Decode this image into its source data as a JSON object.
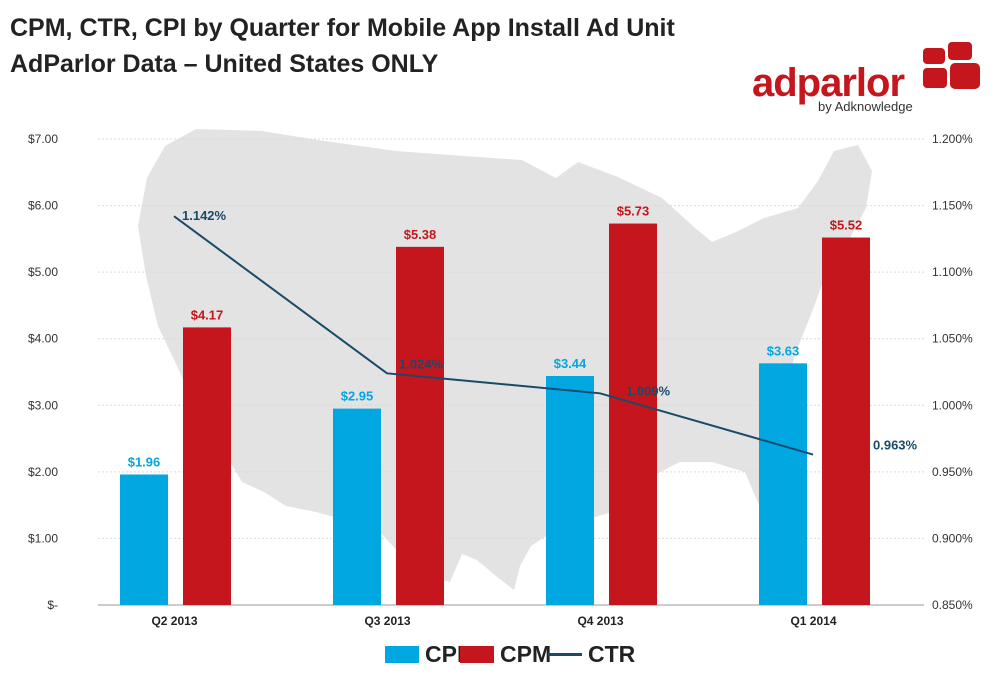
{
  "title_line1": "CPM, CTR, CPI by Quarter for Mobile App Install Ad Unit",
  "title_line2": "AdParlor Data – United States ONLY",
  "logo": {
    "brand": "adparlor",
    "tagline": "by Adknowledge"
  },
  "colors": {
    "cpi": "#00a7e1",
    "cpm": "#c4161c",
    "ctr": "#1a4a6a",
    "map": "#e3e3e3",
    "grid": "#d9d9d9"
  },
  "chart_data": {
    "type": "bar",
    "title": "CPM, CTR, CPI by Quarter for Mobile App Install Ad Unit",
    "subtitle": "AdParlor Data – United States ONLY",
    "categories": [
      "Q2 2013",
      "Q3 2013",
      "Q4 2013",
      "Q1 2014"
    ],
    "series": [
      {
        "name": "CPI",
        "kind": "bar",
        "axis": "left",
        "values": [
          1.96,
          2.95,
          3.44,
          3.63
        ],
        "labels": [
          "$1.96",
          "$2.95",
          "$3.44",
          "$3.63"
        ]
      },
      {
        "name": "CPM",
        "kind": "bar",
        "axis": "left",
        "values": [
          4.17,
          5.38,
          5.73,
          5.52
        ],
        "labels": [
          "$4.17",
          "$5.38",
          "$5.73",
          "$5.52"
        ]
      },
      {
        "name": "CTR",
        "kind": "line",
        "axis": "right",
        "values": [
          1.142,
          1.024,
          1.009,
          0.963
        ],
        "labels": [
          "1.142%",
          "1.024%",
          "1.009%",
          "0.963%"
        ]
      }
    ],
    "y_left": {
      "min": 0,
      "max": 7,
      "step": 1,
      "tick_labels": [
        "$-",
        "$1.00",
        "$2.00",
        "$3.00",
        "$4.00",
        "$5.00",
        "$6.00",
        "$7.00"
      ]
    },
    "y_right": {
      "min": 0.85,
      "max": 1.2,
      "step": 0.05,
      "tick_labels": [
        "0.850%",
        "0.900%",
        "0.950%",
        "1.000%",
        "1.050%",
        "1.100%",
        "1.150%",
        "1.200%"
      ]
    },
    "grid": true,
    "legend": {
      "position": "bottom",
      "entries": [
        "CPI",
        "CPM",
        "CTR"
      ]
    }
  }
}
